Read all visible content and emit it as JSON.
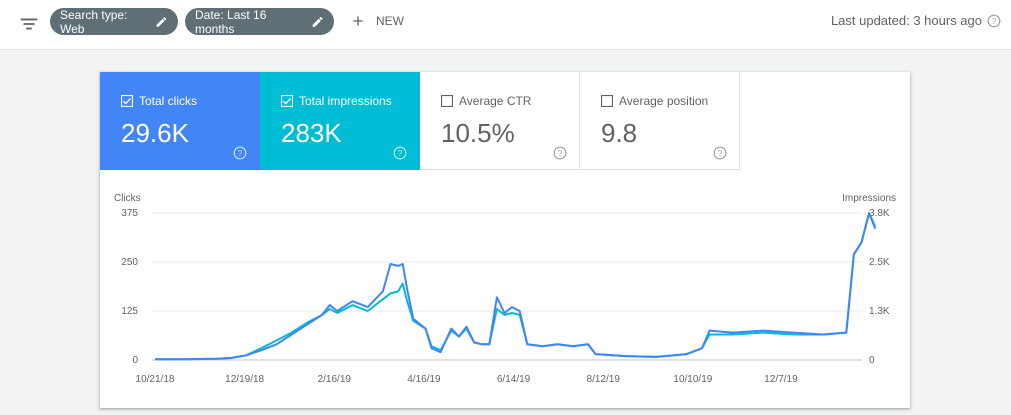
{
  "toolbar": {
    "chip_search_type": "Search type: Web",
    "chip_date": "Date: Last 16 months",
    "new_label": "NEW",
    "last_updated": "Last updated: 3 hours ago"
  },
  "metrics": [
    {
      "label": "Total clicks",
      "value": "29.6K",
      "checked": true,
      "color": "#4285f4"
    },
    {
      "label": "Total impressions",
      "value": "283K",
      "checked": true,
      "color": "#00bcd4"
    },
    {
      "label": "Average CTR",
      "value": "10.5%",
      "checked": false
    },
    {
      "label": "Average position",
      "value": "9.8",
      "checked": false
    }
  ],
  "chart_data": {
    "type": "line",
    "left_axis_label": "Clicks",
    "right_axis_label": "Impressions",
    "left_ticks": [
      "0",
      "125",
      "250",
      "375"
    ],
    "left_tick_values": [
      0,
      125,
      250,
      375
    ],
    "right_ticks": [
      "0",
      "1.3K",
      "2.5K",
      "3.8K"
    ],
    "right_tick_values": [
      0,
      1250,
      2500,
      3750
    ],
    "ylim_left": [
      0,
      375
    ],
    "ylim_right": [
      0,
      3750
    ],
    "x_ticks": [
      "10/21/18",
      "12/19/18",
      "2/16/19",
      "4/16/19",
      "6/14/19",
      "8/12/19",
      "10/10/19",
      "12/7/19"
    ],
    "x_tick_days": [
      0,
      59,
      118,
      177,
      236,
      295,
      354,
      412
    ],
    "x_range_days": [
      0,
      464
    ],
    "series": [
      {
        "name": "Total clicks",
        "color": "#4285f4",
        "axis": "left",
        "points": [
          [
            0,
            2
          ],
          [
            20,
            2
          ],
          [
            40,
            3
          ],
          [
            50,
            5
          ],
          [
            60,
            12
          ],
          [
            70,
            25
          ],
          [
            80,
            40
          ],
          [
            90,
            65
          ],
          [
            100,
            90
          ],
          [
            110,
            115
          ],
          [
            115,
            140
          ],
          [
            120,
            125
          ],
          [
            130,
            150
          ],
          [
            140,
            135
          ],
          [
            150,
            175
          ],
          [
            155,
            245
          ],
          [
            160,
            240
          ],
          [
            163,
            245
          ],
          [
            166,
            180
          ],
          [
            170,
            105
          ],
          [
            178,
            80
          ],
          [
            182,
            30
          ],
          [
            188,
            20
          ],
          [
            195,
            80
          ],
          [
            200,
            60
          ],
          [
            205,
            85
          ],
          [
            210,
            45
          ],
          [
            215,
            40
          ],
          [
            220,
            40
          ],
          [
            225,
            160
          ],
          [
            230,
            120
          ],
          [
            235,
            135
          ],
          [
            240,
            125
          ],
          [
            245,
            40
          ],
          [
            255,
            35
          ],
          [
            265,
            40
          ],
          [
            275,
            35
          ],
          [
            285,
            40
          ],
          [
            290,
            15
          ],
          [
            310,
            10
          ],
          [
            330,
            8
          ],
          [
            350,
            15
          ],
          [
            360,
            30
          ],
          [
            365,
            75
          ],
          [
            380,
            70
          ],
          [
            400,
            75
          ],
          [
            420,
            70
          ],
          [
            440,
            65
          ],
          [
            455,
            70
          ],
          [
            460,
            270
          ],
          [
            465,
            300
          ],
          [
            470,
            375
          ],
          [
            474,
            335
          ]
        ]
      },
      {
        "name": "Total impressions",
        "color": "#00bcd4",
        "axis": "right",
        "points": [
          [
            0,
            20
          ],
          [
            20,
            20
          ],
          [
            40,
            30
          ],
          [
            50,
            50
          ],
          [
            60,
            120
          ],
          [
            70,
            300
          ],
          [
            80,
            500
          ],
          [
            90,
            700
          ],
          [
            100,
            950
          ],
          [
            110,
            1150
          ],
          [
            115,
            1300
          ],
          [
            120,
            1200
          ],
          [
            130,
            1400
          ],
          [
            140,
            1250
          ],
          [
            150,
            1550
          ],
          [
            155,
            1700
          ],
          [
            160,
            1750
          ],
          [
            163,
            1950
          ],
          [
            166,
            1500
          ],
          [
            170,
            1000
          ],
          [
            178,
            800
          ],
          [
            182,
            350
          ],
          [
            188,
            250
          ],
          [
            195,
            750
          ],
          [
            200,
            600
          ],
          [
            205,
            800
          ],
          [
            210,
            450
          ],
          [
            215,
            400
          ],
          [
            220,
            400
          ],
          [
            225,
            1300
          ],
          [
            230,
            1150
          ],
          [
            235,
            1200
          ],
          [
            240,
            1150
          ],
          [
            245,
            400
          ],
          [
            255,
            350
          ],
          [
            265,
            400
          ],
          [
            275,
            350
          ],
          [
            285,
            400
          ],
          [
            290,
            150
          ],
          [
            310,
            100
          ],
          [
            330,
            80
          ],
          [
            350,
            150
          ],
          [
            360,
            300
          ],
          [
            365,
            650
          ],
          [
            380,
            650
          ],
          [
            400,
            700
          ],
          [
            420,
            650
          ],
          [
            440,
            650
          ],
          [
            455,
            700
          ],
          [
            460,
            2700
          ],
          [
            465,
            3000
          ],
          [
            470,
            3750
          ],
          [
            474,
            3400
          ]
        ]
      }
    ]
  }
}
